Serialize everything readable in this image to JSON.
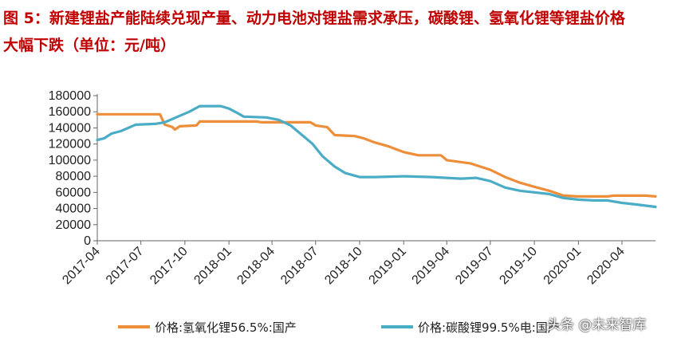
{
  "header": {
    "title_line1": "图 5：新建锂盐产能陆续兑现产量、动力电池对锂盐需求承压，碳酸锂、氢氧化锂等锂盐价格",
    "title_line2": "大幅下跌（单位：元/吨）"
  },
  "watermark": "头条 @未来智库",
  "colors": {
    "series1": "#ed8e3a",
    "series2": "#4bacc6",
    "title": "#c00000"
  },
  "chart_data": {
    "type": "line",
    "title": "",
    "xlabel": "",
    "ylabel": "",
    "ylim": [
      0,
      180000
    ],
    "yticks": [
      0,
      20000,
      40000,
      60000,
      80000,
      100000,
      120000,
      140000,
      160000,
      180000
    ],
    "xlim": [
      "2017-04-01",
      "2020-06-10"
    ],
    "xticks": [
      "2017-04",
      "2017-07",
      "2017-10",
      "2018-01",
      "2018-04",
      "2018-07",
      "2018-10",
      "2019-01",
      "2019-04",
      "2019-07",
      "2019-10",
      "2020-01",
      "2020-04"
    ],
    "grid": false,
    "legend": "bottom",
    "series": [
      {
        "name": "价格:氢氧化锂56.5%:国产",
        "color": "#ed8e3a",
        "points": [
          [
            "2017-04-01",
            157000
          ],
          [
            "2017-08-10",
            157000
          ],
          [
            "2017-08-20",
            144000
          ],
          [
            "2017-09-05",
            141000
          ],
          [
            "2017-09-10",
            138000
          ],
          [
            "2017-09-20",
            142000
          ],
          [
            "2017-10-25",
            143000
          ],
          [
            "2017-11-01",
            148000
          ],
          [
            "2018-03-01",
            148000
          ],
          [
            "2018-03-10",
            147000
          ],
          [
            "2018-06-20",
            147000
          ],
          [
            "2018-07-01",
            143000
          ],
          [
            "2018-07-25",
            141000
          ],
          [
            "2018-08-10",
            131000
          ],
          [
            "2018-09-20",
            130000
          ],
          [
            "2018-10-10",
            127000
          ],
          [
            "2018-11-01",
            122000
          ],
          [
            "2018-12-01",
            117000
          ],
          [
            "2019-01-01",
            110000
          ],
          [
            "2019-02-01",
            106000
          ],
          [
            "2019-03-20",
            106000
          ],
          [
            "2019-04-01",
            100000
          ],
          [
            "2019-05-20",
            96000
          ],
          [
            "2019-07-01",
            88000
          ],
          [
            "2019-08-01",
            79000
          ],
          [
            "2019-09-01",
            72000
          ],
          [
            "2019-10-01",
            67000
          ],
          [
            "2019-11-01",
            62000
          ],
          [
            "2019-12-01",
            56000
          ],
          [
            "2020-01-01",
            55000
          ],
          [
            "2020-03-01",
            55000
          ],
          [
            "2020-03-15",
            56000
          ],
          [
            "2020-05-20",
            56000
          ],
          [
            "2020-06-10",
            55000
          ]
        ]
      },
      {
        "name": "价格:碳酸锂99.5%电:国产",
        "color": "#4bacc6",
        "points": [
          [
            "2017-04-01",
            125000
          ],
          [
            "2017-04-15",
            127000
          ],
          [
            "2017-05-01",
            133000
          ],
          [
            "2017-05-20",
            136000
          ],
          [
            "2017-06-05",
            140000
          ],
          [
            "2017-06-20",
            144000
          ],
          [
            "2017-07-31",
            145000
          ],
          [
            "2017-08-20",
            147000
          ],
          [
            "2017-09-20",
            155000
          ],
          [
            "2017-10-10",
            160000
          ],
          [
            "2017-11-01",
            167000
          ],
          [
            "2017-12-15",
            167000
          ],
          [
            "2018-01-01",
            164000
          ],
          [
            "2018-01-20",
            158000
          ],
          [
            "2018-02-01",
            154000
          ],
          [
            "2018-03-20",
            153000
          ],
          [
            "2018-04-15",
            150000
          ],
          [
            "2018-05-10",
            143000
          ],
          [
            "2018-06-01",
            132000
          ],
          [
            "2018-06-25",
            120000
          ],
          [
            "2018-07-15",
            105000
          ],
          [
            "2018-08-10",
            92000
          ],
          [
            "2018-09-01",
            84000
          ],
          [
            "2018-10-01",
            79000
          ],
          [
            "2018-11-01",
            79000
          ],
          [
            "2019-01-01",
            80000
          ],
          [
            "2019-03-01",
            79000
          ],
          [
            "2019-05-01",
            77000
          ],
          [
            "2019-06-01",
            78000
          ],
          [
            "2019-07-01",
            74000
          ],
          [
            "2019-08-01",
            66000
          ],
          [
            "2019-09-01",
            62000
          ],
          [
            "2019-10-01",
            60000
          ],
          [
            "2019-11-01",
            58000
          ],
          [
            "2019-12-01",
            53000
          ],
          [
            "2020-01-01",
            51000
          ],
          [
            "2020-02-01",
            50000
          ],
          [
            "2020-03-01",
            50000
          ],
          [
            "2020-04-01",
            47000
          ],
          [
            "2020-05-01",
            45000
          ],
          [
            "2020-06-10",
            42000
          ]
        ]
      }
    ]
  }
}
